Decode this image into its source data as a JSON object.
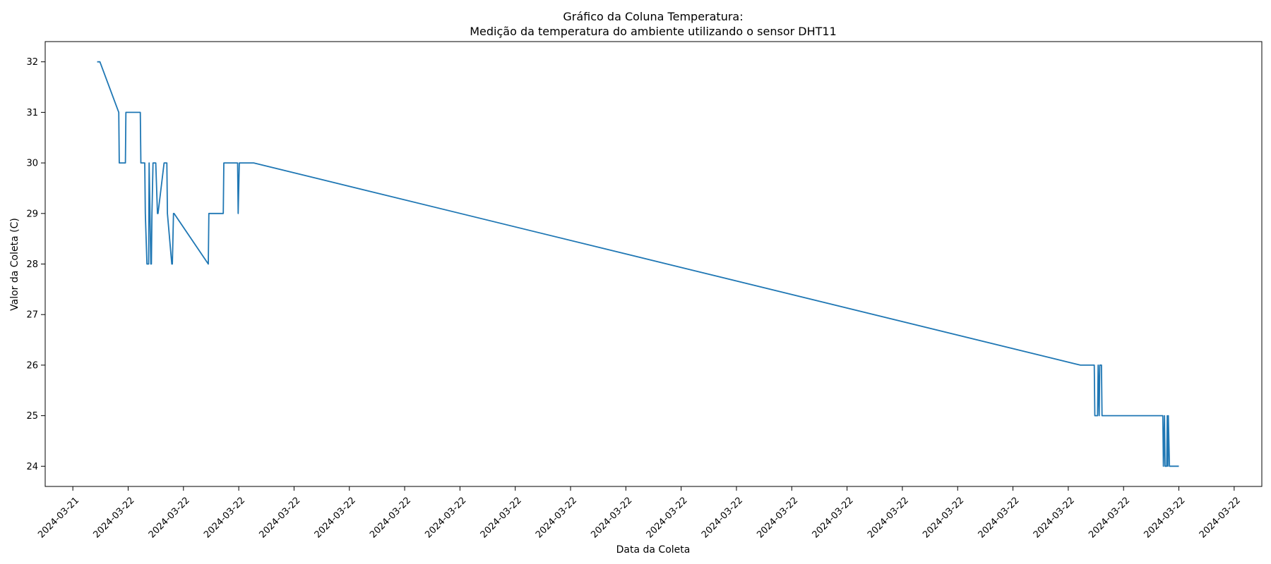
{
  "chart_data": {
    "type": "line",
    "title": "Gráfico da Coluna Temperatura:",
    "subtitle": "Medição da temperatura do ambiente utilizando o sensor DHT11",
    "xlabel": "Data da Coleta",
    "ylabel": "Valor da Coleta (C)",
    "ylim": [
      23.6,
      32.4
    ],
    "xlim": [
      0,
      22
    ],
    "grid": false,
    "line_color": "#1f77b4",
    "y_ticks": [
      24,
      25,
      26,
      27,
      28,
      29,
      30,
      31,
      32
    ],
    "x_tick_positions": [
      0.5,
      1.5,
      2.5,
      3.5,
      4.5,
      5.5,
      6.5,
      7.5,
      8.5,
      9.5,
      10.5,
      11.5,
      12.5,
      13.5,
      14.5,
      15.5,
      16.5,
      17.5,
      18.5,
      19.5,
      20.5,
      21.5
    ],
    "x_tick_labels": [
      "2024-03-21",
      "2024-03-22",
      "2024-03-22",
      "2024-03-22",
      "2024-03-22",
      "2024-03-22",
      "2024-03-22",
      "2024-03-22",
      "2024-03-22",
      "2024-03-22",
      "2024-03-22",
      "2024-03-22",
      "2024-03-22",
      "2024-03-22",
      "2024-03-22",
      "2024-03-22",
      "2024-03-22",
      "2024-03-22",
      "2024-03-22",
      "2024-03-22",
      "2024-03-22",
      "2024-03-22"
    ],
    "series": [
      {
        "x": [
          0.94,
          0.99,
          1.33,
          1.34,
          1.45,
          1.46,
          1.72,
          1.73,
          1.8,
          1.81,
          1.84,
          1.87,
          1.88,
          1.91,
          1.92,
          1.93,
          1.95,
          1.96,
          1.99,
          2.0,
          2.03,
          2.04,
          2.15,
          2.16,
          2.2,
          2.21,
          2.29,
          2.3,
          2.32,
          2.33,
          2.95,
          2.96,
          3.22,
          3.23,
          3.48,
          3.49,
          3.51,
          3.52,
          3.77,
          18.72,
          18.97,
          18.98,
          19.03,
          19.04,
          19.06,
          19.07,
          19.1,
          19.11,
          20.21,
          20.22,
          20.24,
          20.25,
          20.28,
          20.29,
          20.3,
          20.31,
          20.33,
          20.34,
          20.35,
          20.36,
          20.5
        ],
        "y": [
          32,
          32,
          31,
          30,
          30,
          31,
          31,
          30,
          30,
          29,
          28,
          28,
          30,
          28,
          28,
          29,
          30,
          30,
          30,
          30,
          29,
          29,
          30,
          30,
          30,
          29,
          28,
          28,
          29,
          29,
          28,
          29,
          29,
          30,
          30,
          29,
          30,
          30,
          30,
          26,
          26,
          25,
          25,
          26,
          25,
          26,
          26,
          25,
          25,
          24,
          25,
          24,
          24,
          25,
          24,
          25,
          24,
          24,
          24,
          24,
          24
        ]
      }
    ]
  }
}
